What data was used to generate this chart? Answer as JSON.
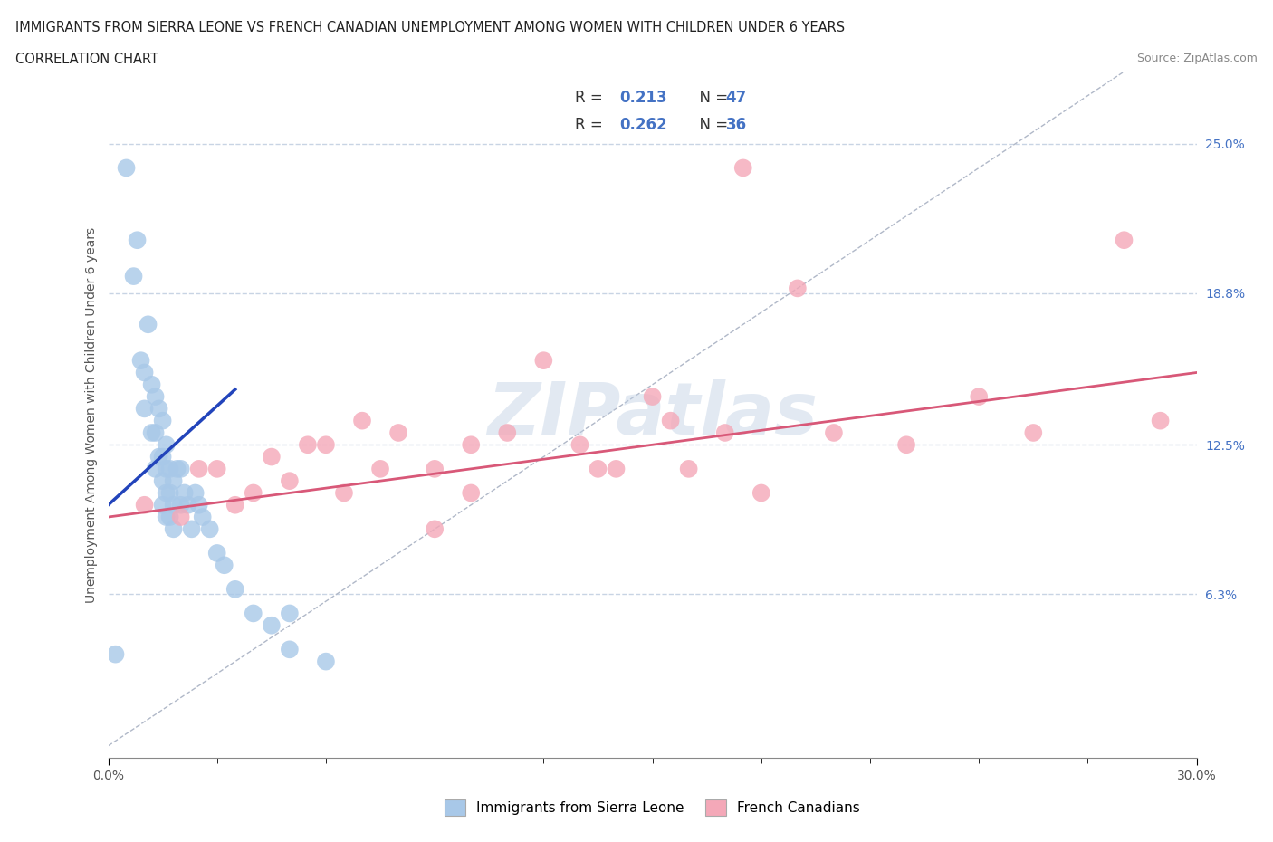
{
  "title_line1": "IMMIGRANTS FROM SIERRA LEONE VS FRENCH CANADIAN UNEMPLOYMENT AMONG WOMEN WITH CHILDREN UNDER 6 YEARS",
  "title_line2": "CORRELATION CHART",
  "source": "Source: ZipAtlas.com",
  "ylabel": "Unemployment Among Women with Children Under 6 years",
  "xlim": [
    0.0,
    0.3
  ],
  "ylim": [
    -0.005,
    0.28
  ],
  "ytick_vals_right": [
    0.25,
    0.188,
    0.125,
    0.063
  ],
  "ytick_labels_right": [
    "25.0%",
    "18.8%",
    "12.5%",
    "6.3%"
  ],
  "blue_color": "#a8c8e8",
  "pink_color": "#f4a8b8",
  "blue_line_color": "#2244bb",
  "pink_line_color": "#d85878",
  "grid_color": "#c8d4e4",
  "watermark": "ZIPatlas",
  "R_blue": 0.213,
  "N_blue": 47,
  "R_pink": 0.262,
  "N_pink": 36,
  "legend_blue_label": "Immigrants from Sierra Leone",
  "legend_pink_label": "French Canadians",
  "blue_scatter_x": [
    0.002,
    0.005,
    0.007,
    0.008,
    0.009,
    0.01,
    0.01,
    0.011,
    0.012,
    0.012,
    0.013,
    0.013,
    0.013,
    0.014,
    0.014,
    0.015,
    0.015,
    0.015,
    0.015,
    0.016,
    0.016,
    0.016,
    0.016,
    0.017,
    0.017,
    0.017,
    0.018,
    0.018,
    0.018,
    0.019,
    0.02,
    0.02,
    0.021,
    0.022,
    0.023,
    0.024,
    0.025,
    0.026,
    0.028,
    0.03,
    0.032,
    0.035,
    0.04,
    0.045,
    0.05,
    0.05,
    0.06
  ],
  "blue_scatter_y": [
    0.038,
    0.24,
    0.195,
    0.21,
    0.16,
    0.155,
    0.14,
    0.175,
    0.15,
    0.13,
    0.145,
    0.13,
    0.115,
    0.14,
    0.12,
    0.135,
    0.12,
    0.11,
    0.1,
    0.125,
    0.115,
    0.105,
    0.095,
    0.115,
    0.105,
    0.095,
    0.11,
    0.1,
    0.09,
    0.115,
    0.115,
    0.1,
    0.105,
    0.1,
    0.09,
    0.105,
    0.1,
    0.095,
    0.09,
    0.08,
    0.075,
    0.065,
    0.055,
    0.05,
    0.055,
    0.04,
    0.035
  ],
  "pink_scatter_x": [
    0.01,
    0.02,
    0.025,
    0.03,
    0.035,
    0.04,
    0.045,
    0.05,
    0.055,
    0.06,
    0.065,
    0.07,
    0.075,
    0.08,
    0.09,
    0.09,
    0.1,
    0.1,
    0.11,
    0.12,
    0.13,
    0.135,
    0.14,
    0.15,
    0.155,
    0.16,
    0.17,
    0.175,
    0.18,
    0.19,
    0.2,
    0.22,
    0.24,
    0.255,
    0.28,
    0.29
  ],
  "pink_scatter_y": [
    0.1,
    0.095,
    0.115,
    0.115,
    0.1,
    0.105,
    0.12,
    0.11,
    0.125,
    0.125,
    0.105,
    0.135,
    0.115,
    0.13,
    0.115,
    0.09,
    0.125,
    0.105,
    0.13,
    0.16,
    0.125,
    0.115,
    0.115,
    0.145,
    0.135,
    0.115,
    0.13,
    0.24,
    0.105,
    0.19,
    0.13,
    0.125,
    0.145,
    0.13,
    0.21,
    0.135
  ]
}
